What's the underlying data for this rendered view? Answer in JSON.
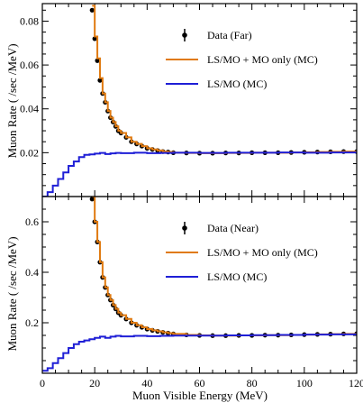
{
  "colors": {
    "data": "#000000",
    "sum_mc": "#e07a10",
    "ls_mc": "#1f1fd6"
  },
  "chart_data": [
    {
      "type": "line",
      "panel": "top",
      "xlabel": "",
      "ylabel": "Muon Rate ( /sec /MeV)",
      "xlim": [
        0,
        120
      ],
      "ylim": [
        0,
        0.088
      ],
      "xticks": [
        0,
        20,
        40,
        60,
        80,
        100,
        120
      ],
      "yticks": [
        0.02,
        0.04,
        0.06,
        0.08
      ],
      "ytick_labels": [
        "0.02",
        "0.04",
        "0.06",
        "0.08"
      ],
      "legend_position": "top-right",
      "legend": [
        "Data (Far)",
        "LS/MO + MO only (MC)",
        "LS/MO (MC)"
      ],
      "series": [
        {
          "name": "Data (Far)",
          "style": "points",
          "x": [
            19,
            20,
            21,
            22,
            23,
            24,
            25,
            26,
            27,
            28,
            29,
            30,
            32,
            34,
            36,
            38,
            40,
            42,
            44,
            46,
            48,
            50,
            55,
            60,
            65,
            70,
            75,
            80,
            85,
            90,
            95,
            100,
            105,
            110,
            115,
            120
          ],
          "y": [
            0.085,
            0.072,
            0.062,
            0.053,
            0.047,
            0.043,
            0.039,
            0.036,
            0.034,
            0.032,
            0.03,
            0.029,
            0.027,
            0.025,
            0.024,
            0.023,
            0.022,
            0.0215,
            0.021,
            0.0205,
            0.0203,
            0.02,
            0.0199,
            0.0198,
            0.0198,
            0.0199,
            0.0199,
            0.02,
            0.02,
            0.02,
            0.0201,
            0.0202,
            0.0203,
            0.0204,
            0.0205,
            0.0205
          ]
        },
        {
          "name": "LS/MO + MO only (MC)",
          "style": "step",
          "x": [
            19,
            20,
            21,
            22,
            23,
            24,
            25,
            26,
            27,
            28,
            29,
            30,
            32,
            34,
            36,
            38,
            40,
            42,
            44,
            46,
            48,
            50,
            55,
            60,
            65,
            70,
            75,
            80,
            85,
            90,
            95,
            100,
            105,
            110,
            115,
            120
          ],
          "y": [
            0.087,
            0.073,
            0.063,
            0.054,
            0.047,
            0.043,
            0.039,
            0.036,
            0.034,
            0.032,
            0.03,
            0.029,
            0.027,
            0.025,
            0.024,
            0.023,
            0.022,
            0.0215,
            0.021,
            0.0205,
            0.0203,
            0.02,
            0.0199,
            0.0198,
            0.0198,
            0.0199,
            0.0199,
            0.02,
            0.02,
            0.02,
            0.0201,
            0.0202,
            0.0203,
            0.0204,
            0.0205,
            0.0205
          ]
        },
        {
          "name": "LS/MO (MC)",
          "style": "step",
          "x": [
            0,
            2,
            4,
            6,
            8,
            10,
            12,
            14,
            16,
            18,
            20,
            22,
            24,
            26,
            28,
            30,
            35,
            40,
            45,
            50,
            60,
            70,
            80,
            90,
            100,
            110,
            120
          ],
          "y": [
            0.0,
            0.002,
            0.005,
            0.008,
            0.011,
            0.014,
            0.016,
            0.018,
            0.019,
            0.0192,
            0.0196,
            0.0199,
            0.0194,
            0.0197,
            0.0199,
            0.0198,
            0.02,
            0.0198,
            0.0199,
            0.02,
            0.0199,
            0.02,
            0.02,
            0.0201,
            0.02,
            0.0201,
            0.0202
          ]
        }
      ]
    },
    {
      "type": "line",
      "panel": "bottom",
      "xlabel": "Muon Visible Energy (MeV)",
      "ylabel": "Muon Rate ( /sec /MeV)",
      "xlim": [
        0,
        120
      ],
      "ylim": [
        0,
        0.7
      ],
      "xticks": [
        0,
        20,
        40,
        60,
        80,
        100,
        120
      ],
      "xtick_labels": [
        "0",
        "20",
        "40",
        "60",
        "80",
        "100",
        "120"
      ],
      "yticks": [
        0.2,
        0.4,
        0.6
      ],
      "ytick_labels": [
        "0.2",
        "0.4",
        "0.6"
      ],
      "legend_position": "top-right",
      "legend": [
        "Data (Near)",
        "LS/MO + MO only (MC)",
        "LS/MO (MC)"
      ],
      "series": [
        {
          "name": "Data (Near)",
          "style": "points",
          "x": [
            19,
            20,
            21,
            22,
            23,
            24,
            25,
            26,
            27,
            28,
            29,
            30,
            32,
            34,
            36,
            38,
            40,
            42,
            44,
            46,
            48,
            50,
            55,
            60,
            65,
            70,
            75,
            80,
            85,
            90,
            95,
            100,
            105,
            110,
            115,
            120
          ],
          "y": [
            0.69,
            0.6,
            0.52,
            0.44,
            0.38,
            0.34,
            0.31,
            0.29,
            0.27,
            0.255,
            0.24,
            0.23,
            0.215,
            0.2,
            0.19,
            0.182,
            0.175,
            0.17,
            0.166,
            0.162,
            0.159,
            0.156,
            0.152,
            0.15,
            0.149,
            0.149,
            0.15,
            0.15,
            0.151,
            0.151,
            0.152,
            0.153,
            0.154,
            0.155,
            0.156,
            0.157
          ]
        },
        {
          "name": "LS/MO + MO only (MC)",
          "style": "step",
          "x": [
            19,
            20,
            21,
            22,
            23,
            24,
            25,
            26,
            27,
            28,
            29,
            30,
            32,
            34,
            36,
            38,
            40,
            42,
            44,
            46,
            48,
            50,
            55,
            60,
            65,
            70,
            75,
            80,
            85,
            90,
            95,
            100,
            105,
            110,
            115,
            120
          ],
          "y": [
            0.7,
            0.6,
            0.52,
            0.44,
            0.38,
            0.34,
            0.31,
            0.29,
            0.27,
            0.255,
            0.24,
            0.23,
            0.215,
            0.2,
            0.19,
            0.182,
            0.175,
            0.17,
            0.166,
            0.162,
            0.159,
            0.156,
            0.152,
            0.15,
            0.149,
            0.149,
            0.15,
            0.15,
            0.151,
            0.151,
            0.152,
            0.153,
            0.154,
            0.155,
            0.156,
            0.157
          ]
        },
        {
          "name": "LS/MO (MC)",
          "style": "step",
          "x": [
            0,
            2,
            4,
            6,
            8,
            10,
            12,
            14,
            16,
            18,
            20,
            22,
            24,
            26,
            28,
            30,
            35,
            40,
            45,
            50,
            60,
            70,
            80,
            90,
            100,
            110,
            120
          ],
          "y": [
            0.01,
            0.02,
            0.04,
            0.06,
            0.08,
            0.1,
            0.115,
            0.125,
            0.13,
            0.135,
            0.14,
            0.145,
            0.14,
            0.145,
            0.148,
            0.146,
            0.148,
            0.147,
            0.148,
            0.149,
            0.149,
            0.15,
            0.151,
            0.152,
            0.153,
            0.154,
            0.156
          ]
        }
      ]
    }
  ]
}
